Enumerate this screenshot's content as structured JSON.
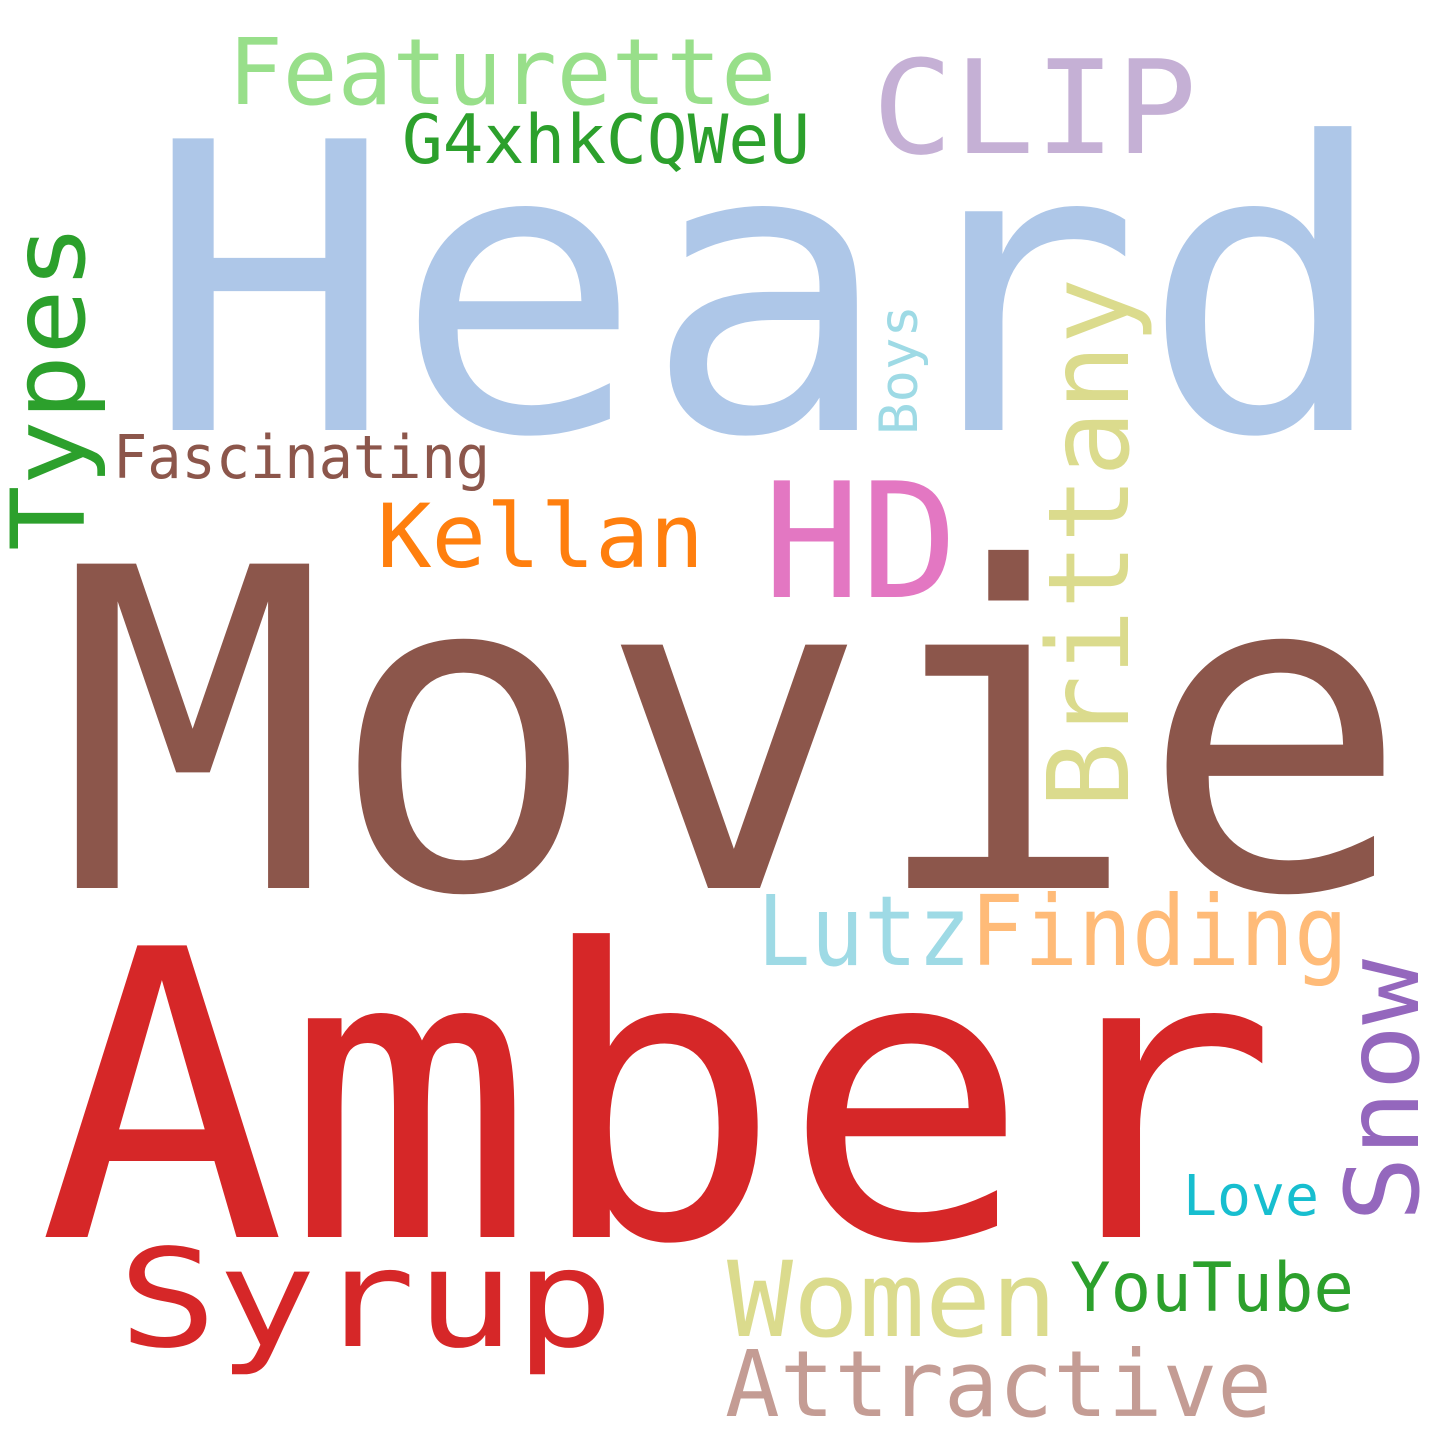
{
  "cloud": {
    "background": "#ffffff",
    "words": [
      {
        "text": "Heard",
        "color": "#aec7e8"
      },
      {
        "text": "Movie",
        "color": "#8c564b"
      },
      {
        "text": "Amber",
        "color": "#d62728"
      },
      {
        "text": "HD",
        "color": "#e377c2"
      },
      {
        "text": "CLIP",
        "color": "#c5b0d5"
      },
      {
        "text": "Featurette",
        "color": "#98df8a"
      },
      {
        "text": "G4xhkCQWeU",
        "color": "#2ca02c"
      },
      {
        "text": "Types",
        "color": "#2ca02c"
      },
      {
        "text": "Fascinating",
        "color": "#8c564b"
      },
      {
        "text": "Boys",
        "color": "#9edae5"
      },
      {
        "text": "Brittany",
        "color": "#dbdb8d"
      },
      {
        "text": "Kellan",
        "color": "#ff7f0e"
      },
      {
        "text": "Lutz",
        "color": "#9edae5"
      },
      {
        "text": "Finding",
        "color": "#ffbb78"
      },
      {
        "text": "Snow",
        "color": "#9467bd"
      },
      {
        "text": "Syrup",
        "color": "#d62728"
      },
      {
        "text": "Women",
        "color": "#dbdb8d"
      },
      {
        "text": "YouTube",
        "color": "#2ca02c"
      },
      {
        "text": "Love",
        "color": "#17becf"
      },
      {
        "text": "Attractive",
        "color": "#c49c94"
      }
    ]
  }
}
